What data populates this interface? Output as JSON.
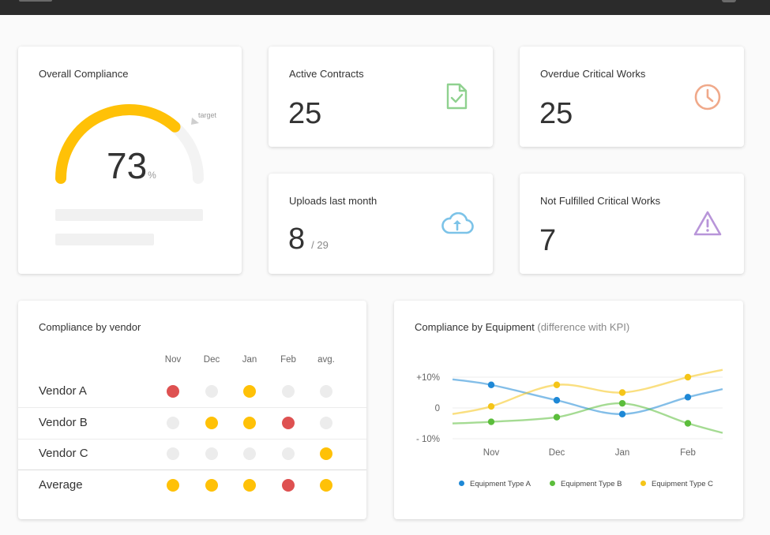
{
  "colors": {
    "gauge_fill": "#ffc107",
    "gauge_track": "#f3f3f3",
    "doc_icon": "#8fd18f",
    "clock_icon": "#f0a98a",
    "cloud_icon": "#7cc3e8",
    "warning_icon": "#b895d9",
    "status_yellow": "#ffc107",
    "status_red": "#de5151",
    "status_grey": "#ececec"
  },
  "overall": {
    "title": "Overall Compliance",
    "value": "73",
    "unit": "%",
    "target_label": "target",
    "fraction": 0.73
  },
  "kpis": {
    "active_contracts": {
      "title": "Active Contracts",
      "value": "25",
      "icon": "document-check-icon"
    },
    "overdue": {
      "title": "Overdue Critical Works",
      "value": "25",
      "icon": "clock-icon"
    },
    "uploads": {
      "title": "Uploads last month",
      "value": "8",
      "sub": "/ 29",
      "icon": "cloud-upload-icon"
    },
    "not_fulfilled": {
      "title": "Not Fulfilled Critical Works",
      "value": "7",
      "icon": "warning-icon"
    }
  },
  "vendor": {
    "title": "Compliance by vendor",
    "columns": [
      "Nov",
      "Dec",
      "Jan",
      "Feb",
      "avg."
    ],
    "rows": [
      {
        "label": "Vendor A",
        "statuses": [
          "red",
          "grey",
          "yellow",
          "grey",
          "grey"
        ]
      },
      {
        "label": "Vendor B",
        "statuses": [
          "grey",
          "yellow",
          "yellow",
          "red",
          "grey"
        ]
      },
      {
        "label": "Vendor C",
        "statuses": [
          "grey",
          "grey",
          "grey",
          "grey",
          "yellow"
        ]
      },
      {
        "label": "Average",
        "statuses": [
          "yellow",
          "yellow",
          "yellow",
          "red",
          "yellow"
        ]
      }
    ]
  },
  "equipment": {
    "title": "Compliance by Equipment",
    "title_note": "(difference with KPI)"
  },
  "chart_data": {
    "type": "line",
    "categories": [
      "Nov",
      "Dec",
      "Jan",
      "Feb"
    ],
    "y_ticks": [
      "+10%",
      "0",
      "- 10%"
    ],
    "ylim": [
      -10,
      10
    ],
    "grid": true,
    "legend_position": "bottom",
    "series": [
      {
        "name": "Equipment Type A",
        "color": "#1e88d6",
        "values": [
          7.5,
          2.5,
          -2,
          3.5
        ]
      },
      {
        "name": "Equipment Type B",
        "color": "#5bbd3b",
        "values": [
          -4.5,
          -3,
          1.5,
          -5
        ]
      },
      {
        "name": "Equipment Type C",
        "color": "#f5c518",
        "values": [
          0.5,
          7.5,
          5,
          10
        ]
      }
    ]
  }
}
